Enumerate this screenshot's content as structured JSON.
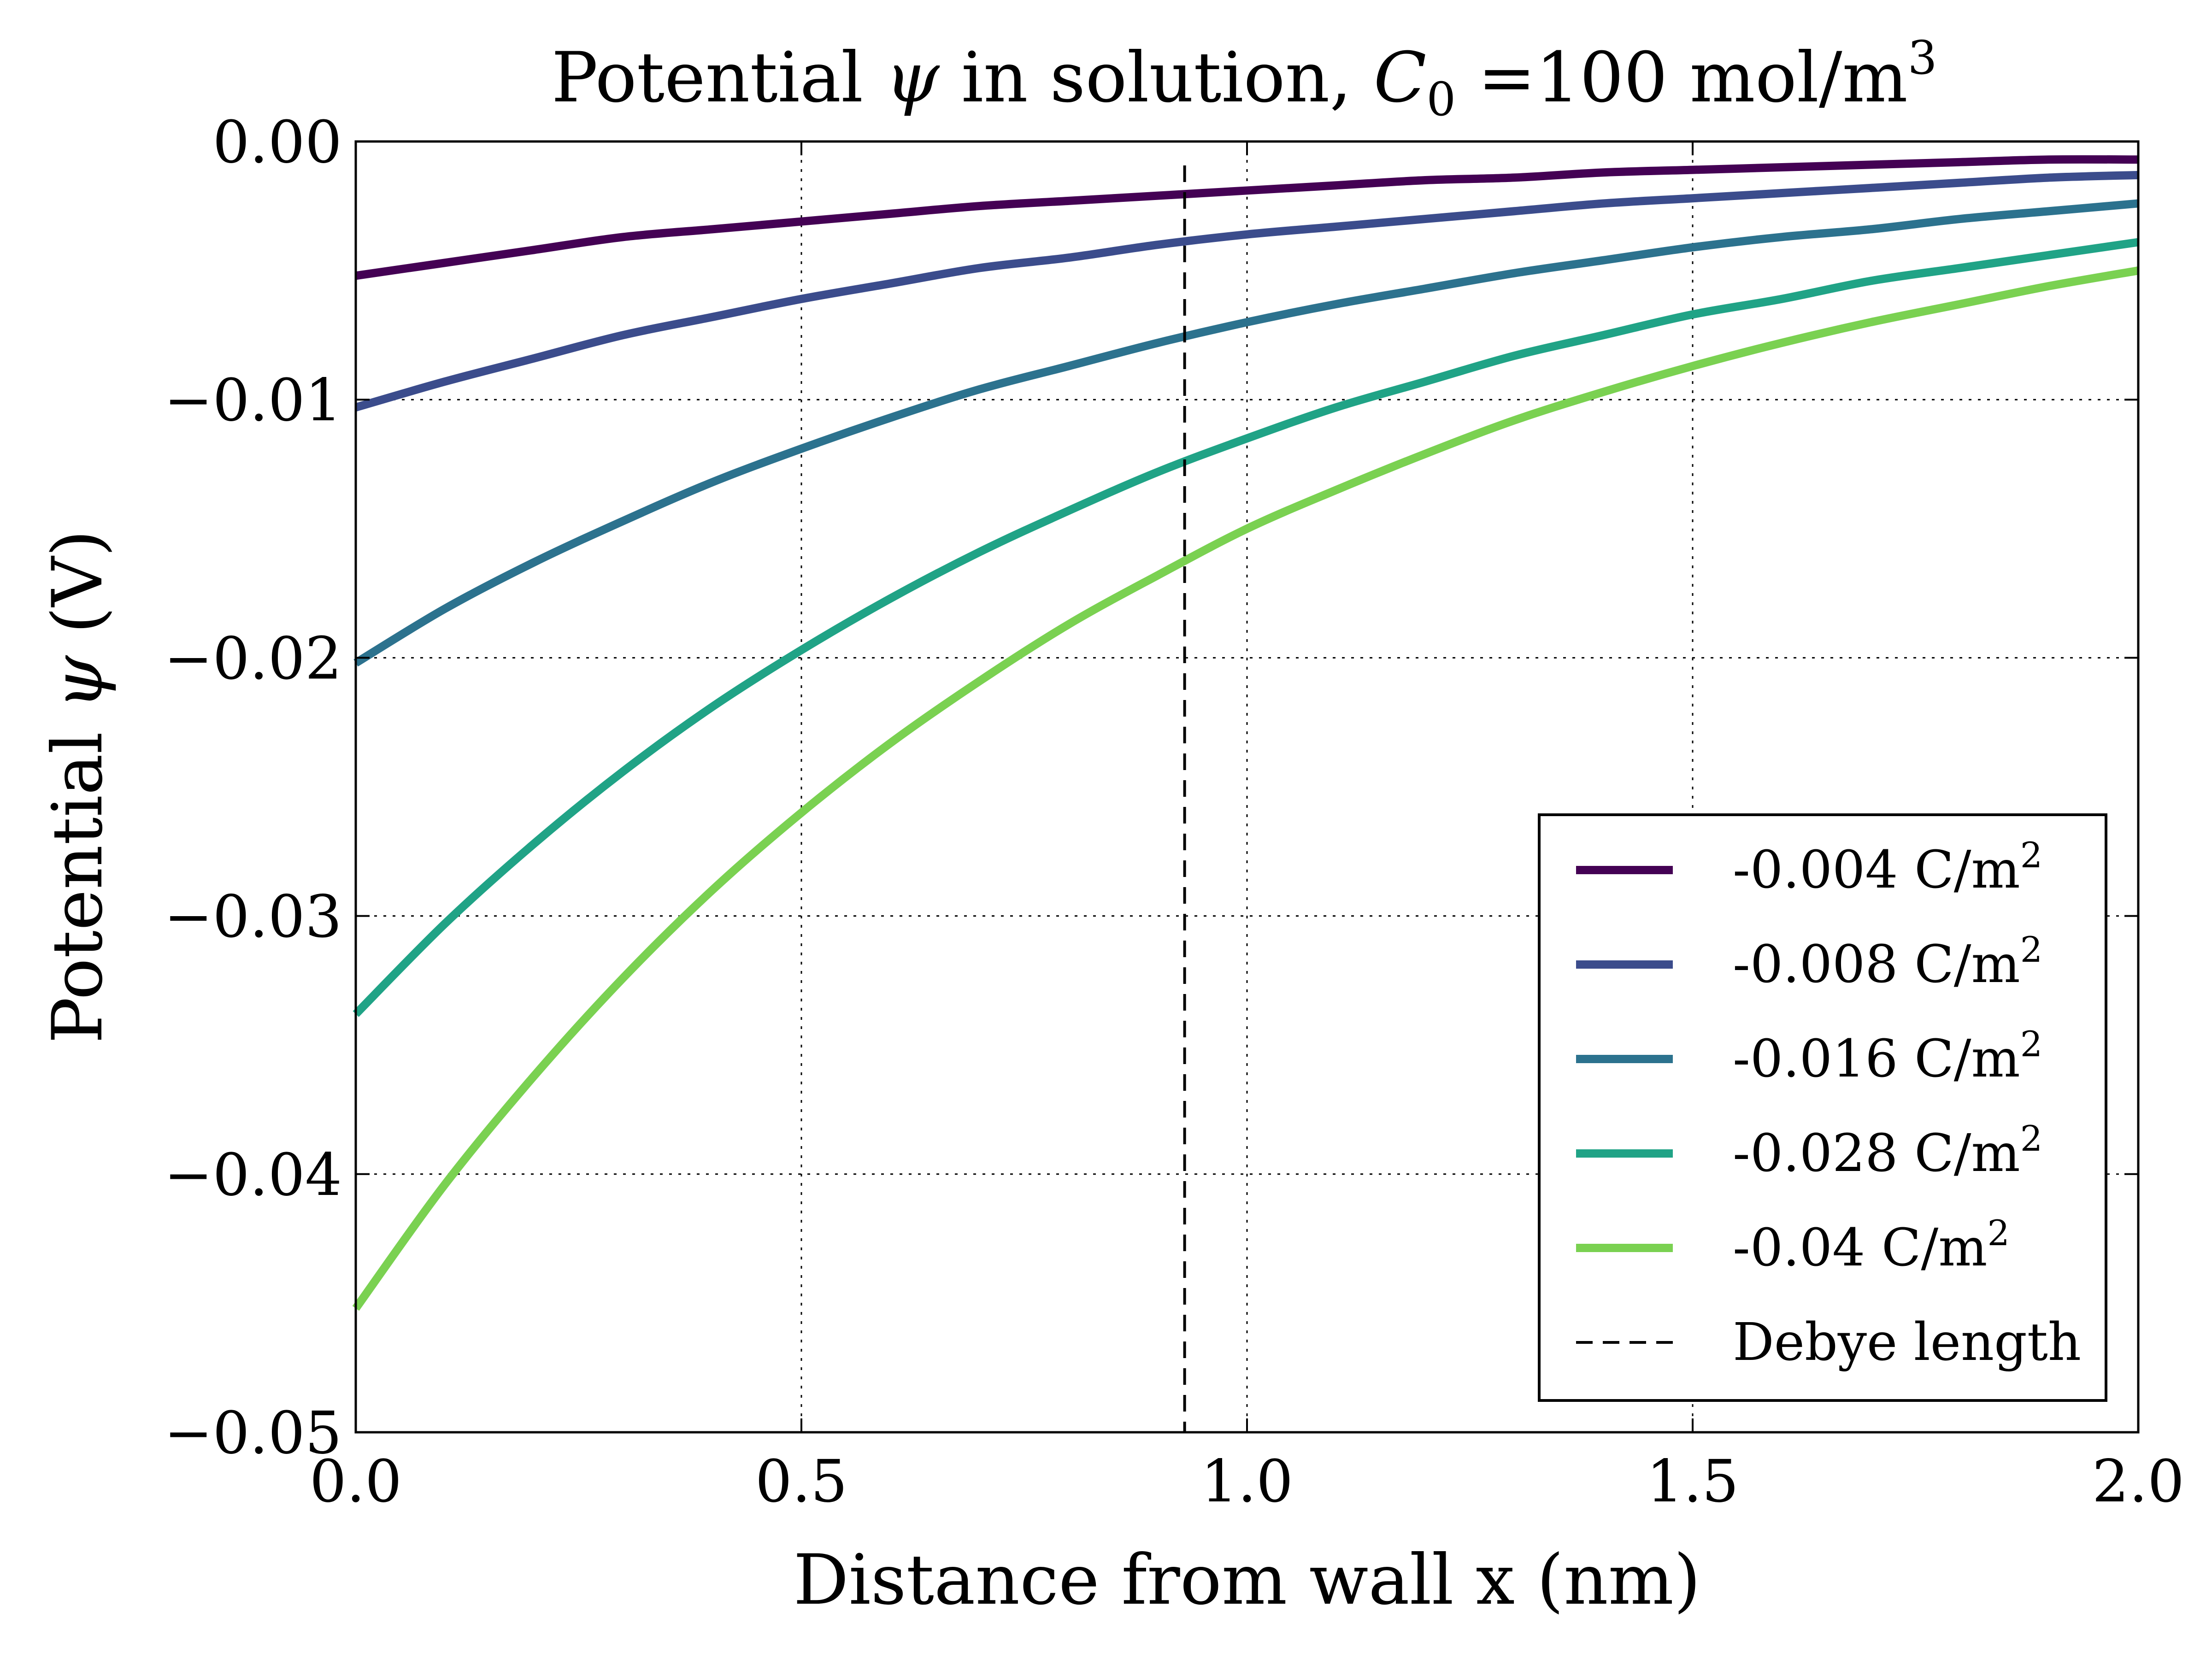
{
  "chart_data": {
    "type": "line",
    "title_prefix": "Potential",
    "title_psi": "ψ",
    "title_middle": " in solution, ",
    "title_c": "C",
    "title_c_sub": "0",
    "title_suffix": " =100 mol/m",
    "title_suffix_sup": "3",
    "xlabel": "Distance from wall x (nm)",
    "ylabel_prefix": "Potential ",
    "ylabel_psi": "ψ",
    "ylabel_suffix": " (V)",
    "xlim": [
      0.0,
      2.0
    ],
    "ylim": [
      -0.05,
      0.0
    ],
    "x_ticks": [
      0.0,
      0.5,
      1.0,
      1.5,
      2.0
    ],
    "x_tick_labels": [
      "0.0",
      "0.5",
      "1.0",
      "1.5",
      "2.0"
    ],
    "y_ticks": [
      0.0,
      -0.01,
      -0.02,
      -0.03,
      -0.04,
      -0.05
    ],
    "y_tick_labels": [
      "0.00",
      "−0.01",
      "−0.02",
      "−0.03",
      "−0.04",
      "−0.05"
    ],
    "grid": true,
    "legend_position": "lower-right",
    "x": [
      0.0,
      0.1,
      0.2,
      0.3,
      0.4,
      0.5,
      0.6,
      0.7,
      0.8,
      0.9,
      1.0,
      1.1,
      1.2,
      1.3,
      1.4,
      1.5,
      1.6,
      1.7,
      1.8,
      1.9,
      2.0
    ],
    "series": [
      {
        "name": "-0.004 C/m",
        "name_sup": "2",
        "color": "#440154",
        "values": [
          -0.0052,
          -0.0047,
          -0.0042,
          -0.0037,
          -0.0034,
          -0.0031,
          -0.0028,
          -0.0025,
          -0.0023,
          -0.0021,
          -0.0019,
          -0.0017,
          -0.0015,
          -0.0014,
          -0.0012,
          -0.0011,
          -0.001,
          -0.0009,
          -0.0008,
          -0.0007,
          -0.0007
        ]
      },
      {
        "name": "-0.008 C/m",
        "name_sup": "2",
        "color": "#3b4c8c",
        "values": [
          -0.0103,
          -0.0093,
          -0.0084,
          -0.0075,
          -0.0068,
          -0.0061,
          -0.0055,
          -0.0049,
          -0.0045,
          -0.004,
          -0.0036,
          -0.0033,
          -0.003,
          -0.0027,
          -0.0024,
          -0.0022,
          -0.002,
          -0.0018,
          -0.0016,
          -0.0014,
          -0.0013
        ]
      },
      {
        "name": "-0.016 C/m",
        "name_sup": "2",
        "color": "#2c728e",
        "values": [
          -0.0202,
          -0.0181,
          -0.0163,
          -0.0147,
          -0.0132,
          -0.0119,
          -0.0107,
          -0.0096,
          -0.0087,
          -0.0078,
          -0.007,
          -0.0063,
          -0.0057,
          -0.0051,
          -0.0046,
          -0.0041,
          -0.0037,
          -0.0034,
          -0.003,
          -0.0027,
          -0.0024
        ]
      },
      {
        "name": "-0.028 C/m",
        "name_sup": "2",
        "color": "#20a386",
        "values": [
          -0.0338,
          -0.0303,
          -0.0272,
          -0.0244,
          -0.0219,
          -0.0197,
          -0.0177,
          -0.0159,
          -0.0143,
          -0.0128,
          -0.0115,
          -0.0103,
          -0.0093,
          -0.0083,
          -0.0075,
          -0.0067,
          -0.0061,
          -0.0054,
          -0.0049,
          -0.0044,
          -0.0039
        ]
      },
      {
        "name": "-0.04 C/m",
        "name_sup": "2",
        "color": "#7ad151",
        "values": [
          -0.0452,
          -0.0404,
          -0.0362,
          -0.0324,
          -0.029,
          -0.026,
          -0.0233,
          -0.0209,
          -0.0187,
          -0.0168,
          -0.015,
          -0.0135,
          -0.0121,
          -0.0108,
          -0.0097,
          -0.0087,
          -0.0078,
          -0.007,
          -0.0063,
          -0.0056,
          -0.005
        ]
      }
    ],
    "reference_line": {
      "name": "Debye length",
      "x": 0.93,
      "color": "#000000",
      "style": "dashed"
    }
  }
}
